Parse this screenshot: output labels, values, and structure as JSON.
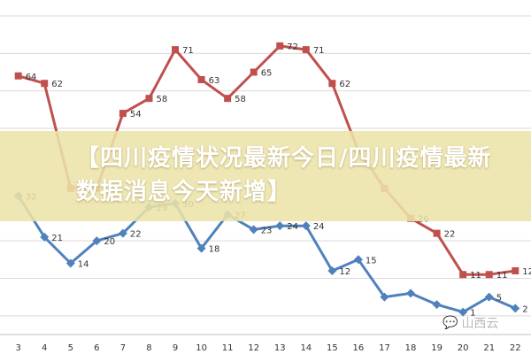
{
  "headline": "【四川疫情状况最新今日/四川疫情最新数据消息今天新增】",
  "watermark": "山西云",
  "chart_data": {
    "type": "line",
    "x": [
      3,
      4,
      5,
      6,
      7,
      8,
      9,
      10,
      11,
      12,
      13,
      14,
      15,
      16,
      17,
      18,
      19,
      20,
      21,
      22
    ],
    "xlim": [
      2.3,
      22.6
    ],
    "ylim": [
      -5,
      80
    ],
    "grid": true,
    "series": [
      {
        "color": "#c0504d",
        "marker": "square",
        "values": [
          64,
          62,
          34,
          34,
          54,
          58,
          71,
          63,
          58,
          65,
          72,
          71,
          62,
          44,
          34,
          26,
          22,
          11,
          11,
          12
        ],
        "labels": [
          "64",
          "62",
          "",
          "",
          "54",
          "58",
          "71",
          "63",
          "58",
          "65",
          "72",
          "71",
          "62",
          "",
          "",
          "26",
          "22",
          "11",
          "11",
          "12"
        ]
      },
      {
        "color": "#4f81bd",
        "marker": "diamond",
        "values": [
          32,
          21,
          14,
          20,
          22,
          29,
          30,
          18,
          27,
          23,
          24,
          24,
          12,
          15,
          5,
          6,
          3,
          1,
          5,
          2
        ],
        "labels": [
          "32",
          "21",
          "14",
          "20",
          "22",
          "29",
          "30",
          "18",
          "27",
          "23",
          "24",
          "24",
          "12",
          "15",
          "",
          "",
          "",
          "1",
          "5",
          "2"
        ]
      }
    ]
  }
}
